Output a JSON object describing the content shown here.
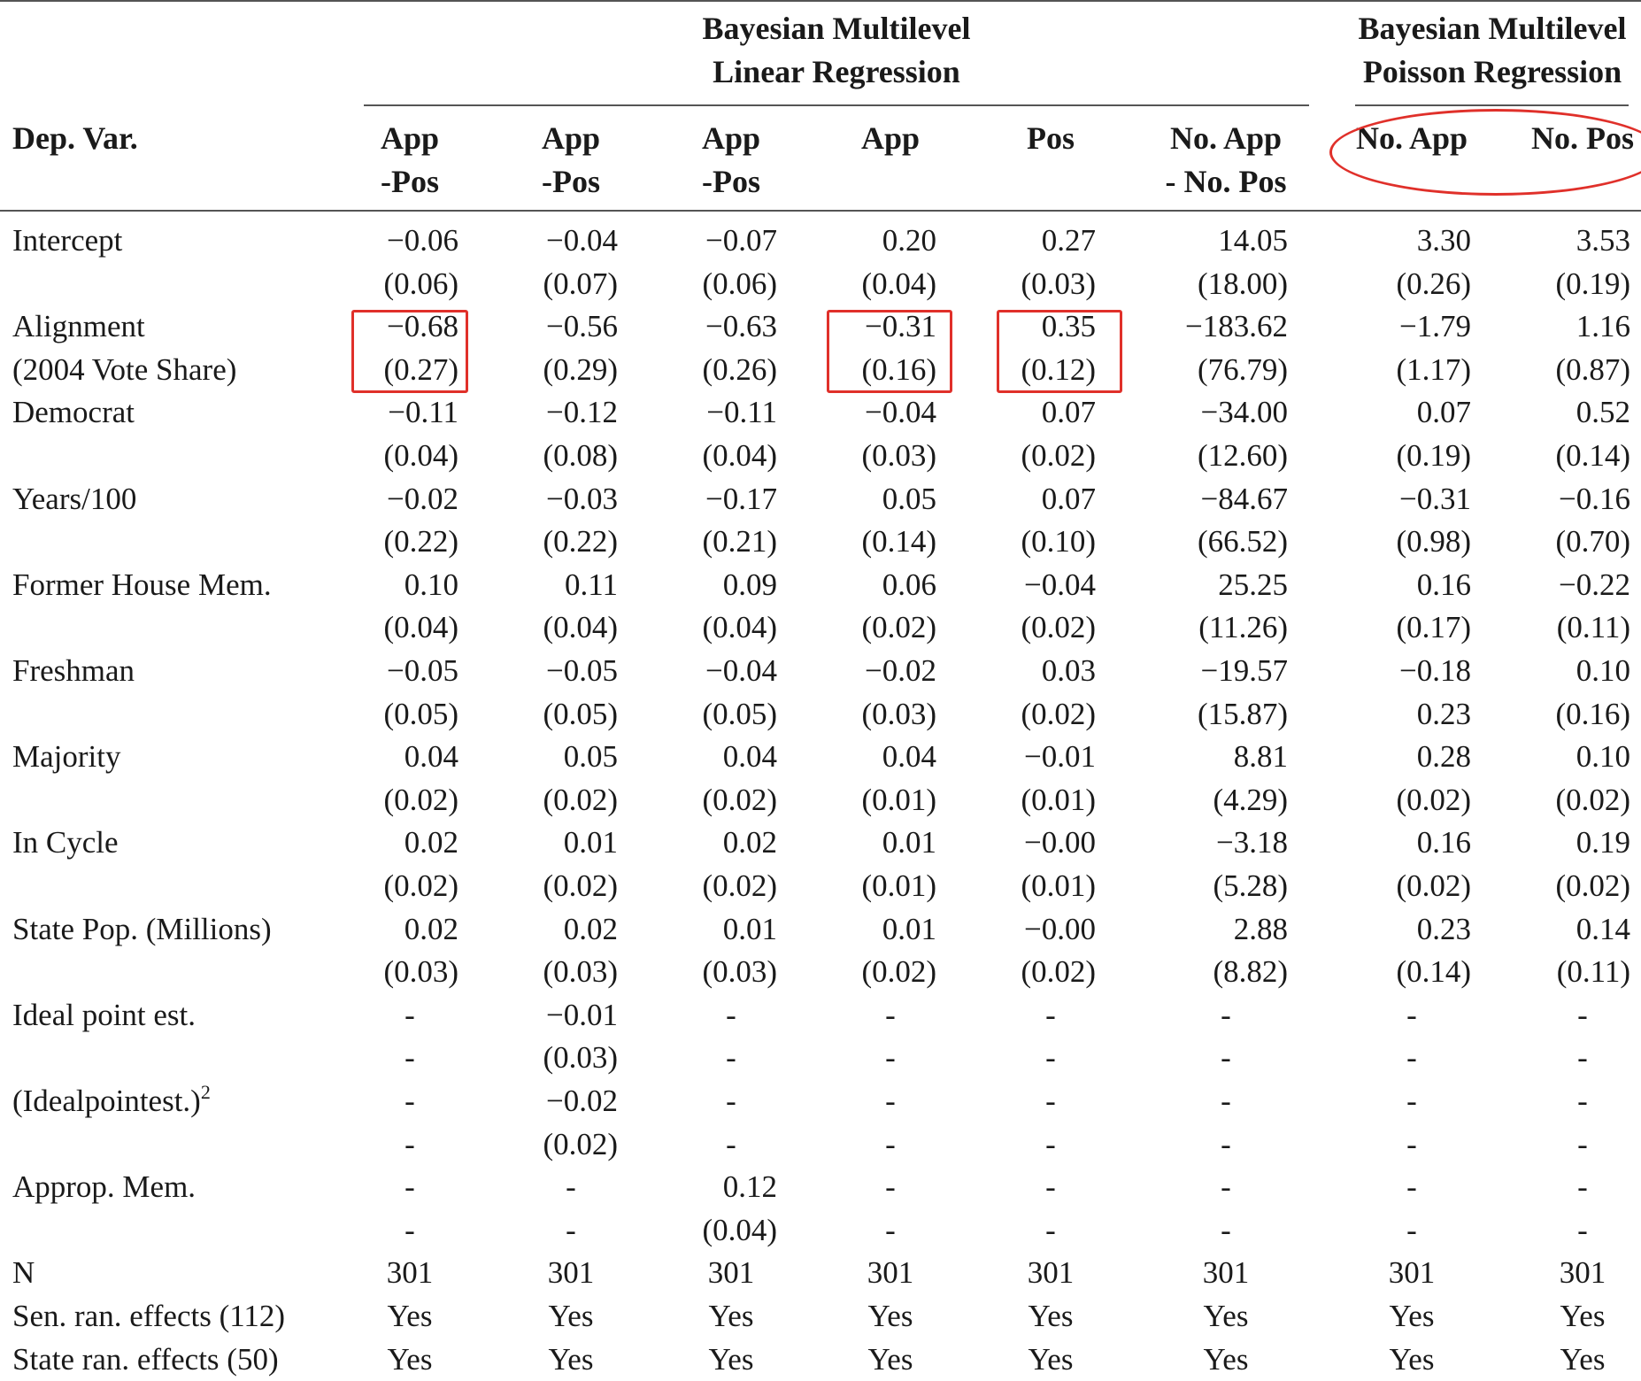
{
  "groups": [
    {
      "title": "Bayesian Multilevel\nLinear Regression"
    },
    {
      "title": "Bayesian Multilevel\nPoisson Regression"
    }
  ],
  "dep_var_label": "Dep. Var.",
  "columns": [
    {
      "line1": "App",
      "line2": "-Pos"
    },
    {
      "line1": "App",
      "line2": "-Pos"
    },
    {
      "line1": "App",
      "line2": "-Pos"
    },
    {
      "line1": "App",
      "line2": ""
    },
    {
      "line1": "Pos",
      "line2": ""
    },
    {
      "line1": "No. App",
      "line2": "- No. Pos"
    },
    {
      "line1": "No. App",
      "line2": ""
    },
    {
      "line1": "No. Pos",
      "line2": ""
    }
  ],
  "variables": [
    {
      "label": "Intercept",
      "label2": "",
      "coef": [
        "−0.06",
        "−0.04",
        "−0.07",
        "0.20",
        "0.27",
        "14.05",
        "3.30",
        "3.53"
      ],
      "se": [
        "(0.06)",
        "(0.07)",
        "(0.06)",
        "(0.04)",
        "(0.03)",
        "(18.00)",
        "(0.26)",
        "(0.19)"
      ]
    },
    {
      "label": "Alignment",
      "label2": "(2004 Vote Share)",
      "coef": [
        "−0.68",
        "−0.56",
        "−0.63",
        "−0.31",
        "0.35",
        "−183.62",
        "−1.79",
        "1.16"
      ],
      "se": [
        "(0.27)",
        "(0.29)",
        "(0.26)",
        "(0.16)",
        "(0.12)",
        "(76.79)",
        "(1.17)",
        "(0.87)"
      ]
    },
    {
      "label": "Democrat",
      "label2": "",
      "coef": [
        "−0.11",
        "−0.12",
        "−0.11",
        "−0.04",
        "0.07",
        "−34.00",
        "0.07",
        "0.52"
      ],
      "se": [
        "(0.04)",
        "(0.08)",
        "(0.04)",
        "(0.03)",
        "(0.02)",
        "(12.60)",
        "(0.19)",
        "(0.14)"
      ]
    },
    {
      "label": "Years/100",
      "label2": "",
      "coef": [
        "−0.02",
        "−0.03",
        "−0.17",
        "0.05",
        "0.07",
        "−84.67",
        "−0.31",
        "−0.16"
      ],
      "se": [
        "(0.22)",
        "(0.22)",
        "(0.21)",
        "(0.14)",
        "(0.10)",
        "(66.52)",
        "(0.98)",
        "(0.70)"
      ]
    },
    {
      "label": "Former House Mem.",
      "label2": "",
      "coef": [
        "0.10",
        "0.11",
        "0.09",
        "0.06",
        "−0.04",
        "25.25",
        "0.16",
        "−0.22"
      ],
      "se": [
        "(0.04)",
        "(0.04)",
        "(0.04)",
        "(0.02)",
        "(0.02)",
        "(11.26)",
        "(0.17)",
        "(0.11)"
      ]
    },
    {
      "label": "Freshman",
      "label2": "",
      "coef": [
        "−0.05",
        "−0.05",
        "−0.04",
        "−0.02",
        "0.03",
        "−19.57",
        "−0.18",
        "0.10"
      ],
      "se": [
        "(0.05)",
        "(0.05)",
        "(0.05)",
        "(0.03)",
        "(0.02)",
        "(15.87)",
        "0.23",
        "(0.16)"
      ]
    },
    {
      "label": "Majority",
      "label2": "",
      "coef": [
        "0.04",
        "0.05",
        "0.04",
        "0.04",
        "−0.01",
        "8.81",
        "0.28",
        "0.10"
      ],
      "se": [
        "(0.02)",
        "(0.02)",
        "(0.02)",
        "(0.01)",
        "(0.01)",
        "(4.29)",
        "(0.02)",
        "(0.02)"
      ]
    },
    {
      "label": "In Cycle",
      "label2": "",
      "coef": [
        "0.02",
        "0.01",
        "0.02",
        "0.01",
        "−0.00",
        "−3.18",
        "0.16",
        "0.19"
      ],
      "se": [
        "(0.02)",
        "(0.02)",
        "(0.02)",
        "(0.01)",
        "(0.01)",
        "(5.28)",
        "(0.02)",
        "(0.02)"
      ]
    },
    {
      "label": "State Pop. (Millions)",
      "label2": "",
      "coef": [
        "0.02",
        "0.02",
        "0.01",
        "0.01",
        "−0.00",
        "2.88",
        "0.23",
        "0.14"
      ],
      "se": [
        "(0.03)",
        "(0.03)",
        "(0.03)",
        "(0.02)",
        "(0.02)",
        "(8.82)",
        "(0.14)",
        "(0.11)"
      ]
    },
    {
      "label": "Ideal point est.",
      "label2": "",
      "coef": [
        "-",
        "−0.01",
        "-",
        "-",
        "-",
        "-",
        "-",
        "-"
      ],
      "se": [
        "-",
        "(0.03)",
        "-",
        "-",
        "-",
        "-",
        "-",
        "-"
      ]
    },
    {
      "label": "(Idealpointest.)",
      "label_sup": "2",
      "label2": "",
      "coef": [
        "-",
        "−0.02",
        "-",
        "-",
        "-",
        "-",
        "-",
        "-"
      ],
      "se": [
        "-",
        "(0.02)",
        "-",
        "-",
        "-",
        "-",
        "-",
        "-"
      ]
    },
    {
      "label": "Approp. Mem.",
      "label2": "",
      "coef": [
        "-",
        "-",
        "0.12",
        "-",
        "-",
        "-",
        "-",
        "-"
      ],
      "se": [
        "-",
        "-",
        "(0.04)",
        "-",
        "-",
        "-",
        "-",
        "-"
      ]
    }
  ],
  "footer_rows": [
    {
      "label": "N",
      "values": [
        "301",
        "301",
        "301",
        "301",
        "301",
        "301",
        "301",
        "301"
      ]
    },
    {
      "label": "Sen. ran. effects (112)",
      "values": [
        "Yes",
        "Yes",
        "Yes",
        "Yes",
        "Yes",
        "Yes",
        "Yes",
        "Yes"
      ]
    },
    {
      "label": "State ran. effects (50)",
      "values": [
        "Yes",
        "Yes",
        "Yes",
        "Yes",
        "Yes",
        "Yes",
        "Yes",
        "Yes"
      ]
    }
  ],
  "annotation_color": "#e0302a"
}
